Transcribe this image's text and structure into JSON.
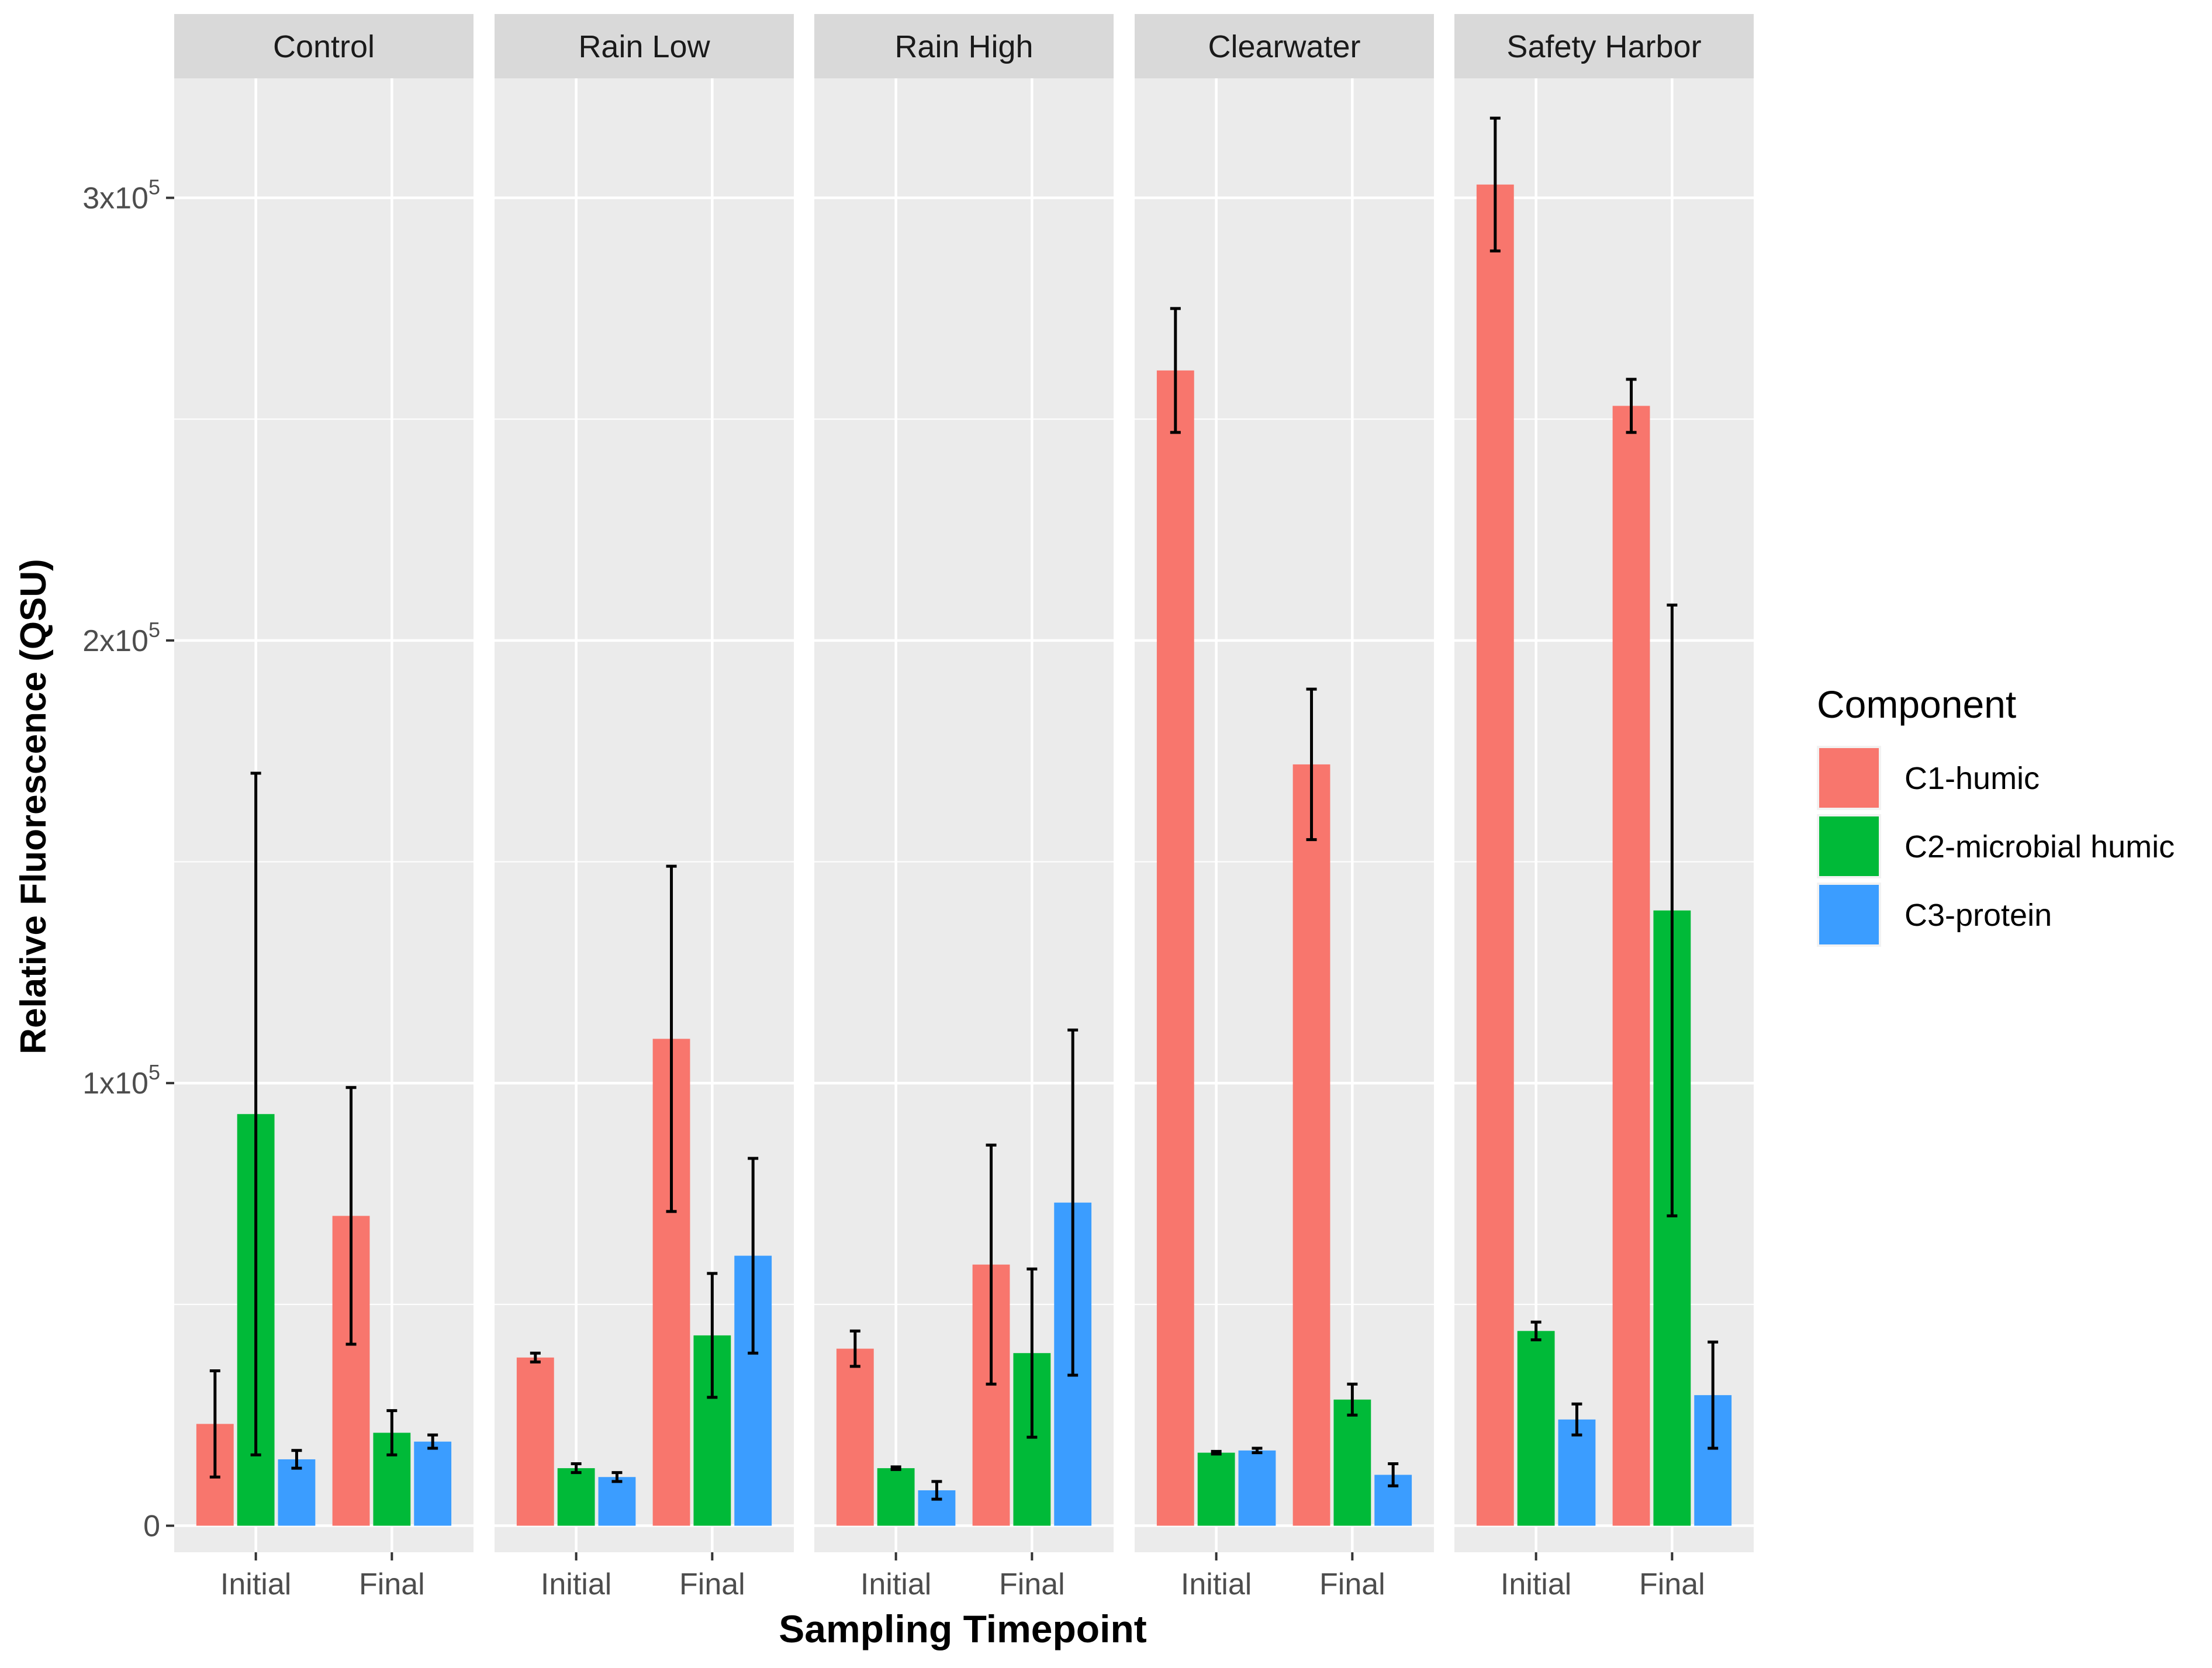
{
  "chart_data": {
    "type": "bar",
    "ylabel": "Relative Fluorescence (QSU)",
    "xlabel": "Sampling Timepoint",
    "ylim": [
      -6000,
      327000
    ],
    "y_ticks": [
      {
        "value": 0,
        "label": "0"
      },
      {
        "value": 100000,
        "label": "1x10",
        "exp": "5"
      },
      {
        "value": 200000,
        "label": "2x10",
        "exp": "5"
      },
      {
        "value": 300000,
        "label": "3x10",
        "exp": "5"
      }
    ],
    "categories": [
      "Initial",
      "Final"
    ],
    "legend": {
      "title": "Component",
      "position": "right",
      "items": [
        {
          "name": "C1-humic",
          "color": "#F8766D"
        },
        {
          "name": "C2-microbial humic",
          "color": "#00BA38"
        },
        {
          "name": "C3-protein",
          "color": "#3B9DFF"
        }
      ]
    },
    "panels": [
      {
        "name": "Control",
        "series": [
          {
            "name": "C1-humic",
            "values": [
              23000,
              70000
            ],
            "errors": [
              12000,
              29000
            ]
          },
          {
            "name": "C2-microbial humic",
            "values": [
              93000,
              21000
            ],
            "errors": [
              77000,
              5000
            ]
          },
          {
            "name": "C3-protein",
            "values": [
              15000,
              19000
            ],
            "errors": [
              2000,
              1500
            ]
          }
        ]
      },
      {
        "name": "Rain Low",
        "series": [
          {
            "name": "C1-humic",
            "values": [
              38000,
              110000
            ],
            "errors": [
              1000,
              39000
            ]
          },
          {
            "name": "C2-microbial humic",
            "values": [
              13000,
              43000
            ],
            "errors": [
              1000,
              14000
            ]
          },
          {
            "name": "C3-protein",
            "values": [
              11000,
              61000
            ],
            "errors": [
              1000,
              22000
            ]
          }
        ]
      },
      {
        "name": "Rain High",
        "series": [
          {
            "name": "C1-humic",
            "values": [
              40000,
              59000
            ],
            "errors": [
              4000,
              27000
            ]
          },
          {
            "name": "C2-microbial humic",
            "values": [
              13000,
              39000
            ],
            "errors": [
              300,
              19000
            ]
          },
          {
            "name": "C3-protein",
            "values": [
              8000,
              73000
            ],
            "errors": [
              2000,
              39000
            ]
          }
        ]
      },
      {
        "name": "Clearwater",
        "series": [
          {
            "name": "C1-humic",
            "values": [
              261000,
              172000
            ],
            "errors": [
              14000,
              17000
            ]
          },
          {
            "name": "C2-microbial humic",
            "values": [
              16500,
              28500
            ],
            "errors": [
              300,
              3500
            ]
          },
          {
            "name": "C3-protein",
            "values": [
              17000,
              11500
            ],
            "errors": [
              500,
              2500
            ]
          }
        ]
      },
      {
        "name": "Safety Harbor",
        "series": [
          {
            "name": "C1-humic",
            "values": [
              303000,
              253000
            ],
            "errors": [
              15000,
              6000
            ]
          },
          {
            "name": "C2-microbial humic",
            "values": [
              44000,
              139000
            ],
            "errors": [
              2000,
              69000
            ]
          },
          {
            "name": "C3-protein",
            "values": [
              24000,
              29500
            ],
            "errors": [
              3500,
              12000
            ]
          }
        ]
      }
    ]
  }
}
